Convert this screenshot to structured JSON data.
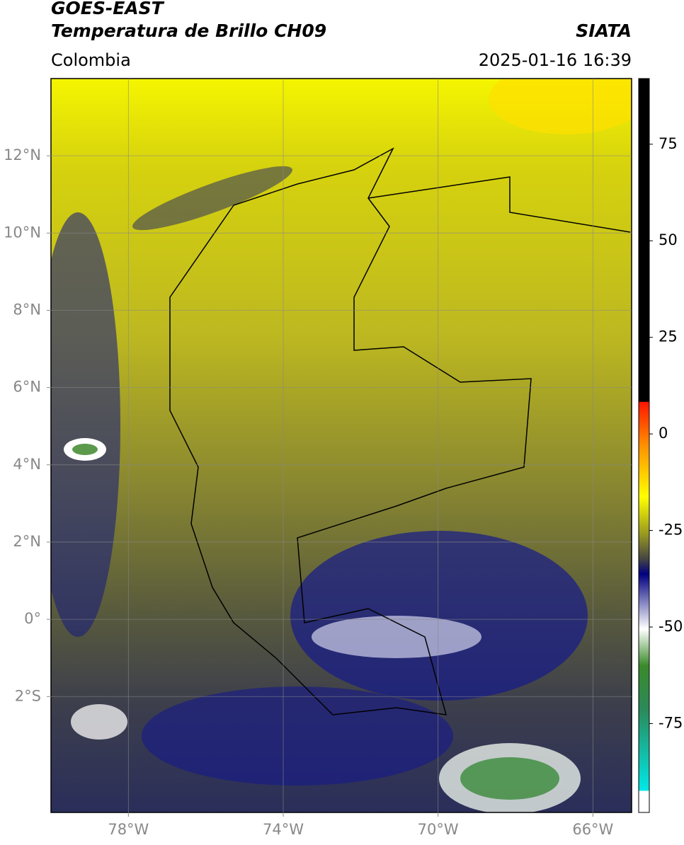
{
  "header": {
    "title": "GOES-EAST",
    "subtitle": "Temperatura de Brillo CH09",
    "source": "SIATA",
    "region": "Colombia",
    "datetime": "2025-01-16 16:39"
  },
  "map": {
    "xlim": [
      -80,
      -65
    ],
    "ylim": [
      -5,
      14
    ],
    "xticks": [
      {
        "value": -78,
        "label": "78°W"
      },
      {
        "value": -74,
        "label": "74°W"
      },
      {
        "value": -70,
        "label": "70°W"
      },
      {
        "value": -66,
        "label": "66°W"
      }
    ],
    "yticks": [
      {
        "value": 12,
        "label": "12°N"
      },
      {
        "value": 10,
        "label": "10°N"
      },
      {
        "value": 8,
        "label": "8°N"
      },
      {
        "value": 6,
        "label": "6°N"
      },
      {
        "value": 4,
        "label": "4°N"
      },
      {
        "value": 2,
        "label": "2°N"
      },
      {
        "value": 0,
        "label": "0°"
      },
      {
        "value": -2,
        "label": "2°S"
      }
    ],
    "grid": true
  },
  "colorbar": {
    "lim": [
      -98,
      92
    ],
    "ticks": [
      75,
      50,
      25,
      0,
      -25,
      -50,
      -75
    ]
  }
}
